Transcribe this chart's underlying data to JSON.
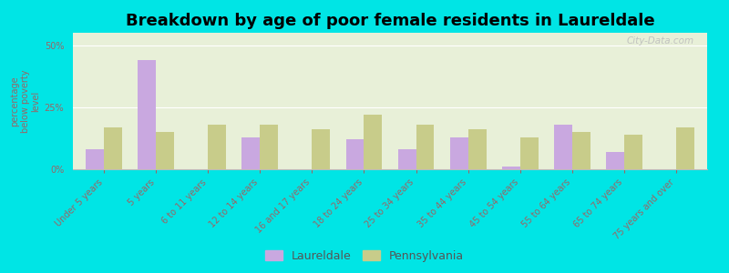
{
  "title": "Breakdown by age of poor female residents in Laureldale",
  "categories": [
    "Under 5 years",
    "5 years",
    "6 to 11 years",
    "12 to 14 years",
    "16 and 17 years",
    "18 to 24 years",
    "25 to 34 years",
    "35 to 44 years",
    "45 to 54 years",
    "55 to 64 years",
    "65 to 74 years",
    "75 years and over"
  ],
  "laureldale": [
    8,
    44,
    0,
    13,
    0,
    12,
    8,
    13,
    1,
    18,
    7,
    0
  ],
  "pennsylvania": [
    17,
    15,
    18,
    18,
    16,
    22,
    18,
    16,
    13,
    15,
    14,
    17
  ],
  "laureldale_color": "#c9a8e0",
  "pennsylvania_color": "#c8cc8a",
  "background_plot": "#e8f0d8",
  "background_fig": "#00e5e5",
  "ylabel": "percentage\nbelow poverty\nlevel",
  "ylim": [
    0,
    55
  ],
  "yticks": [
    0,
    25,
    50
  ],
  "ytick_labels": [
    "0%",
    "25%",
    "50%"
  ],
  "title_fontsize": 13,
  "axis_label_fontsize": 7,
  "tick_label_fontsize": 7,
  "legend_laureldale": "Laureldale",
  "legend_pennsylvania": "Pennsylvania",
  "bar_width": 0.35,
  "label_color": "#996666",
  "watermark": "City-Data.com"
}
